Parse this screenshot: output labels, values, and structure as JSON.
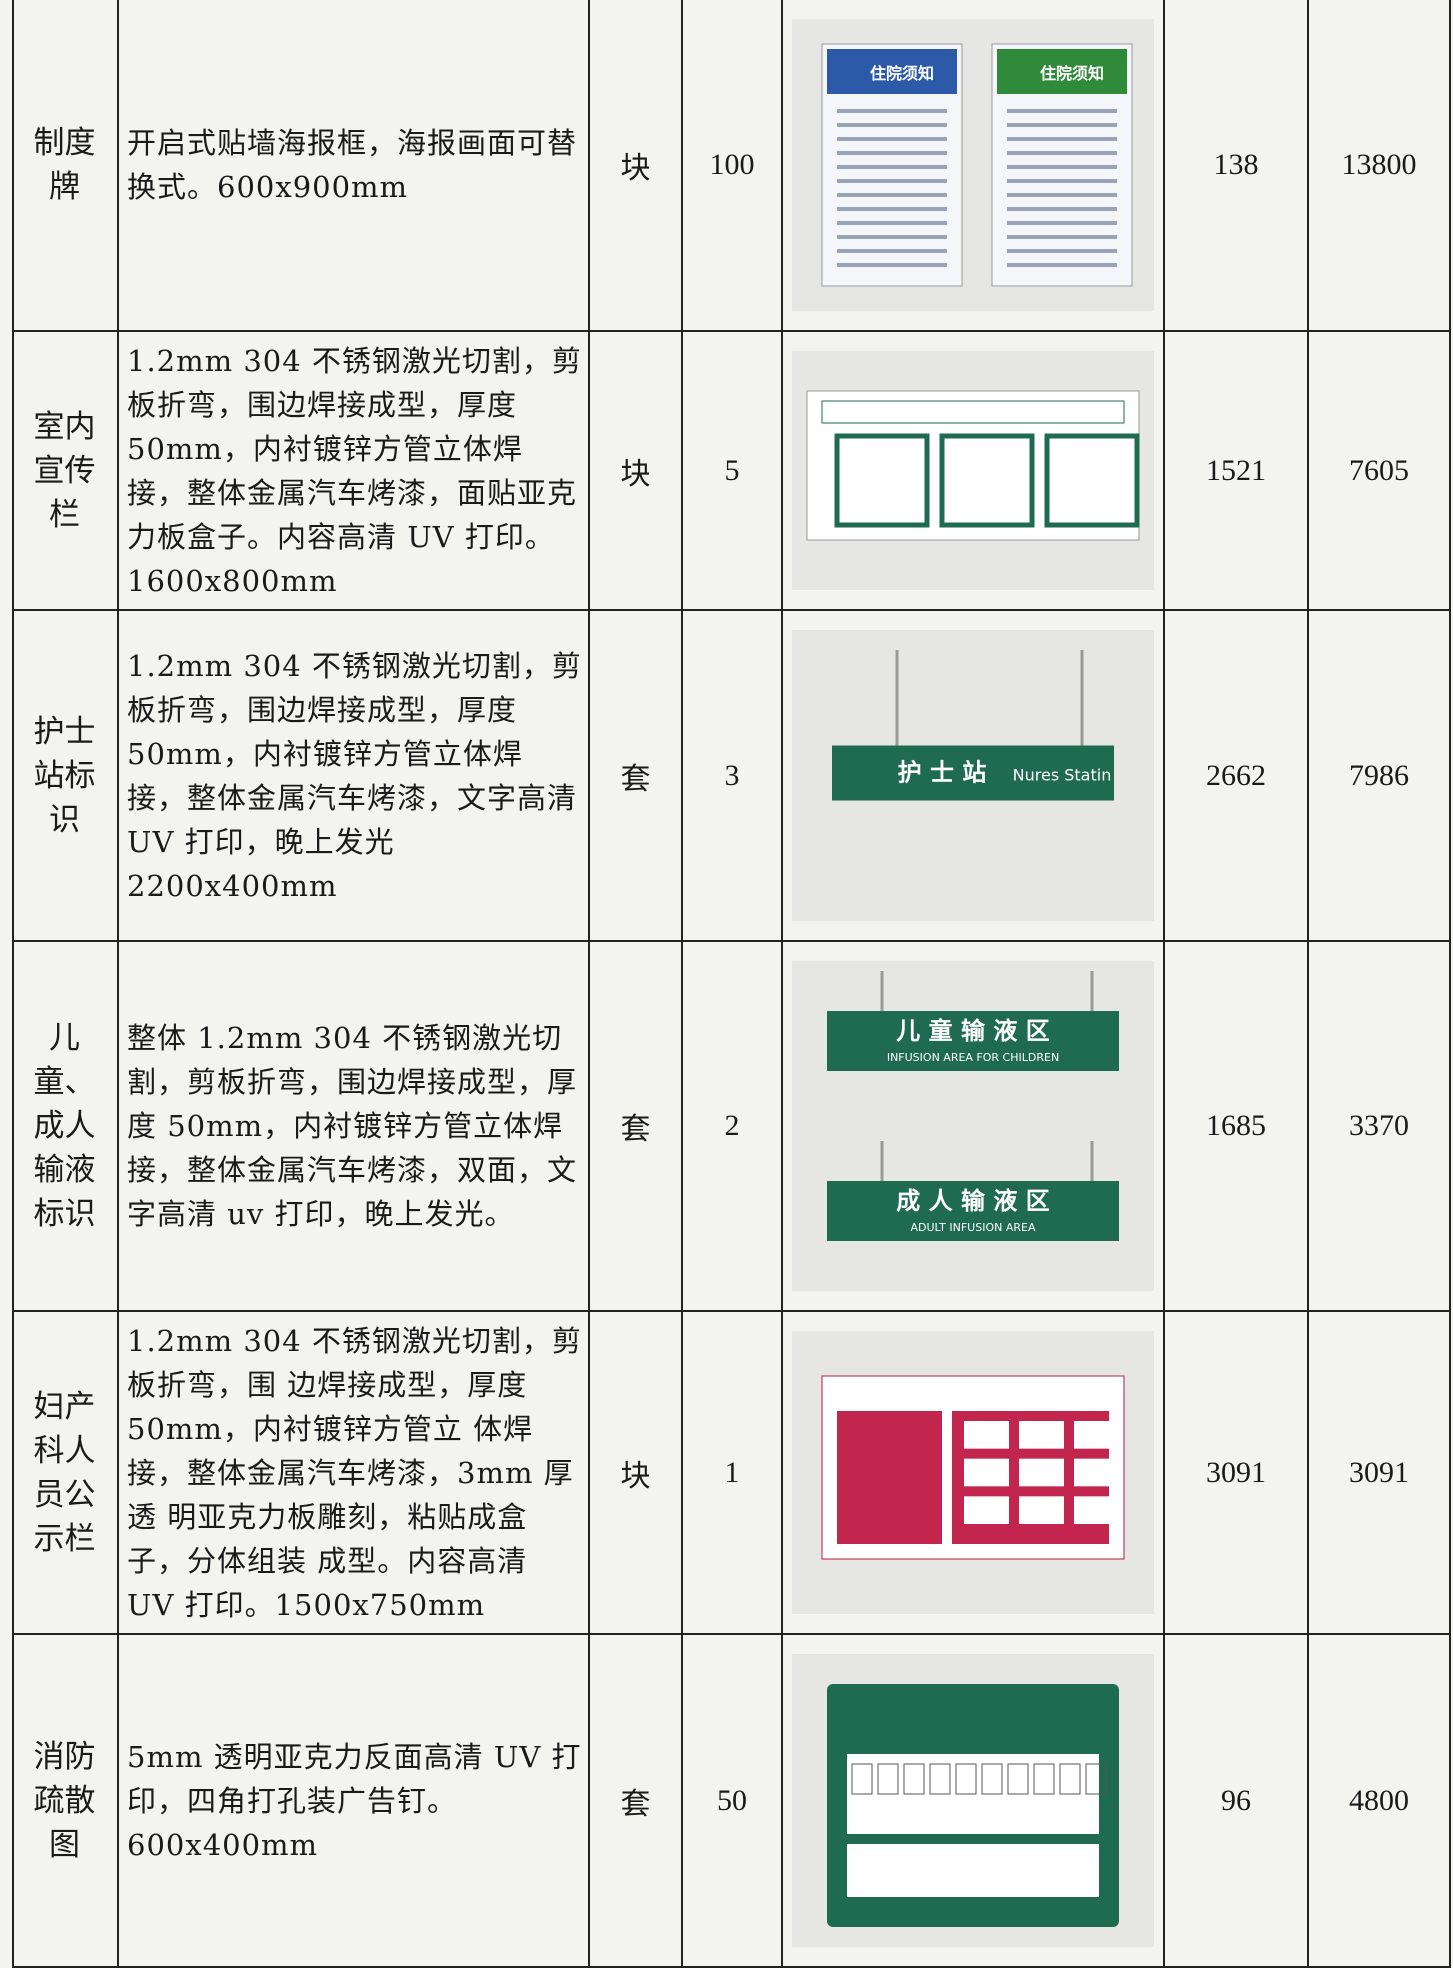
{
  "table": {
    "rows": [
      {
        "name": "制度牌",
        "description": "开启式贴墙海报框，海报画面可替换式。600x900mm",
        "unit": "块",
        "quantity": "100",
        "image_text": [
          "住院须知",
          "住院须知"
        ],
        "unit_price": "138",
        "total": "13800"
      },
      {
        "name": "室内宣传栏",
        "description": "1.2mm 304 不锈钢激光切割，剪板折弯，围边焊接成型，厚度50mm，内衬镀锌方管立体焊接，整体金属汽车烤漆，面贴亚克力板盒子。内容高清 UV 打印。1600x800mm",
        "unit": "块",
        "quantity": "5",
        "unit_price": "1521",
        "total": "7605"
      },
      {
        "name": "护士站标识",
        "description": "1.2mm 304 不锈钢激光切割，剪板折弯，围边焊接成型，厚度50mm，内衬镀锌方管立体焊接，整体金属汽车烤漆，文字高清 UV 打印，晚上发光 2200x400mm",
        "unit": "套",
        "quantity": "3",
        "image_text": [
          "护 士 站",
          "Nures Statin"
        ],
        "unit_price": "2662",
        "total": "7986"
      },
      {
        "name": "儿童、成人输液标识",
        "description": "整体 1.2mm 304 不锈钢激光切割，剪板折弯，围边焊接成型，厚度 50mm，内衬镀锌方管立体焊接，整体金属汽车烤漆，双面，文字高清 uv 打印，晚上发光。",
        "unit": "套",
        "quantity": "2",
        "image_text": [
          "儿 童 输 液 区",
          "INFUSION AREA FOR CHILDREN",
          "成 人 输 液 区",
          "ADULT INFUSION AREA"
        ],
        "unit_price": "1685",
        "total": "3370"
      },
      {
        "name": "妇产科人员公示栏",
        "description": "1.2mm 304 不锈钢激光切割，剪板折弯，围 边焊接成型，厚度 50mm，内衬镀锌方管立 体焊接，整体金属汽车烤漆，3mm 厚透 明亚克力板雕刻，粘贴成盒子，分体组装 成型。内容高清 UV 打印。1500x750mm",
        "unit": "块",
        "quantity": "1",
        "unit_price": "3091",
        "total": "3091"
      },
      {
        "name": "消防疏散图",
        "description": "5mm 透明亚克力反面高清 UV 打印，四角打孔装广告钉。600x400mm",
        "unit": "套",
        "quantity": "50",
        "unit_price": "96",
        "total": "4800"
      }
    ]
  }
}
